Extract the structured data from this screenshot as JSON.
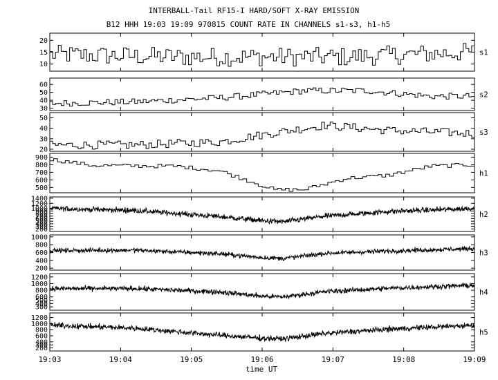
{
  "chart_data": {
    "type": "line",
    "title": "INTERBALL-Tail RF15-I HARD/SOFT X-RAY EMISSION",
    "subtitle": "B12 HHH 19:03 19:09 970815  COUNT RATE IN CHANNELS s1-s3, h1-h5",
    "xlabel": "time UT",
    "x_ticks": [
      "19:03",
      "19:04",
      "19:05",
      "19:06",
      "19:07",
      "19:08",
      "19:09"
    ],
    "x_range": [
      "19:03",
      "19:09"
    ],
    "panels": [
      {
        "name": "s1",
        "style": "step",
        "ylim": [
          7,
          23
        ],
        "yticks": [
          10,
          15,
          20
        ],
        "trend": [
          [
            0,
            14
          ],
          [
            0.15,
            13.5
          ],
          [
            0.3,
            13
          ],
          [
            0.5,
            13
          ],
          [
            0.7,
            13
          ],
          [
            0.85,
            14
          ],
          [
            1,
            15
          ]
        ],
        "noise": 4.0,
        "samples": 150
      },
      {
        "name": "s2",
        "style": "step",
        "ylim": [
          27,
          68
        ],
        "yticks": [
          30,
          40,
          50,
          60
        ],
        "trend": [
          [
            0,
            36
          ],
          [
            0.2,
            38
          ],
          [
            0.4,
            43
          ],
          [
            0.6,
            52
          ],
          [
            0.75,
            52
          ],
          [
            0.9,
            45
          ],
          [
            1,
            45
          ]
        ],
        "noise": 4.0,
        "samples": 150
      },
      {
        "name": "s3",
        "style": "step",
        "ylim": [
          18,
          55
        ],
        "yticks": [
          20,
          30,
          40,
          50
        ],
        "trend": [
          [
            0,
            24
          ],
          [
            0.2,
            24
          ],
          [
            0.4,
            27
          ],
          [
            0.55,
            37
          ],
          [
            0.65,
            43
          ],
          [
            0.8,
            38
          ],
          [
            1,
            35
          ]
        ],
        "noise": 4.0,
        "samples": 150
      },
      {
        "name": "h1",
        "style": "step",
        "ylim": [
          430,
          950
        ],
        "yticks": [
          500,
          600,
          700,
          800,
          900
        ],
        "trend": [
          [
            0,
            870
          ],
          [
            0.1,
            790
          ],
          [
            0.3,
            780
          ],
          [
            0.4,
            720
          ],
          [
            0.5,
            530
          ],
          [
            0.53,
            470
          ],
          [
            0.6,
            470
          ],
          [
            0.7,
            620
          ],
          [
            0.8,
            660
          ],
          [
            0.9,
            780
          ],
          [
            1,
            800
          ]
        ],
        "noise": 25,
        "samples": 110
      },
      {
        "name": "h2",
        "style": "noise",
        "ylim": [
          100,
          1450
        ],
        "yticks": [
          200,
          300,
          400,
          500,
          600,
          700,
          800,
          900,
          1000,
          1200,
          1400
        ],
        "trend": [
          [
            0,
            1000
          ],
          [
            0.2,
            920
          ],
          [
            0.4,
            680
          ],
          [
            0.5,
            520
          ],
          [
            0.55,
            480
          ],
          [
            0.65,
            700
          ],
          [
            0.8,
            880
          ],
          [
            1,
            1000
          ]
        ],
        "noise": 100,
        "samples": 1100
      },
      {
        "name": "h3",
        "style": "noise",
        "ylim": [
          150,
          1050
        ],
        "yticks": [
          200,
          400,
          600,
          800,
          1000
        ],
        "trend": [
          [
            0,
            650
          ],
          [
            0.2,
            660
          ],
          [
            0.4,
            570
          ],
          [
            0.5,
            470
          ],
          [
            0.55,
            450
          ],
          [
            0.65,
            580
          ],
          [
            0.8,
            640
          ],
          [
            1,
            700
          ]
        ],
        "noise": 55,
        "samples": 1100
      },
      {
        "name": "h4",
        "style": "noise",
        "ylim": [
          200,
          1300
        ],
        "yticks": [
          300,
          400,
          500,
          600,
          800,
          1000,
          1200
        ],
        "trend": [
          [
            0,
            850
          ],
          [
            0.2,
            850
          ],
          [
            0.4,
            750
          ],
          [
            0.5,
            620
          ],
          [
            0.55,
            600
          ],
          [
            0.65,
            760
          ],
          [
            0.8,
            860
          ],
          [
            1,
            950
          ]
        ],
        "noise": 70,
        "samples": 1100
      },
      {
        "name": "h5",
        "style": "noise",
        "ylim": [
          100,
          1350
        ],
        "yticks": [
          200,
          300,
          400,
          600,
          800,
          1000,
          1200
        ],
        "trend": [
          [
            0,
            950
          ],
          [
            0.2,
            850
          ],
          [
            0.4,
            620
          ],
          [
            0.5,
            520
          ],
          [
            0.55,
            500
          ],
          [
            0.65,
            680
          ],
          [
            0.8,
            820
          ],
          [
            1,
            950
          ]
        ],
        "noise": 85,
        "samples": 1100
      }
    ],
    "grid": false,
    "legend": "none"
  }
}
